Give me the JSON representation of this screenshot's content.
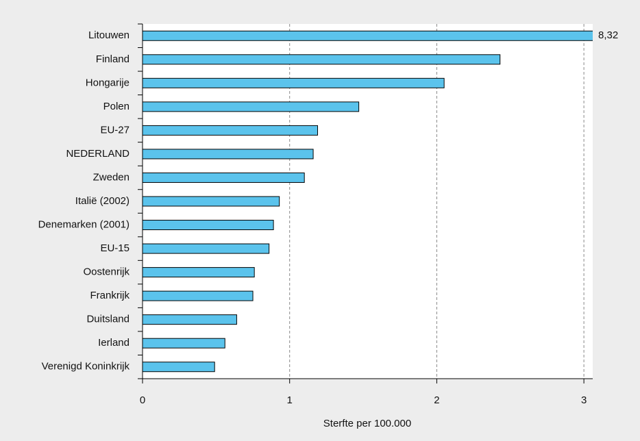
{
  "chart_data": {
    "type": "barh",
    "categories": [
      "Litouwen",
      "Finland",
      "Hongarije",
      "Polen",
      "EU-27",
      "NEDERLAND",
      "Zweden",
      "Italië (2002)",
      "Denemarken (2001)",
      "EU-15",
      "Oostenrijk",
      "Frankrijk",
      "Duitsland",
      "Ierland",
      "Verenigd Koninkrijk"
    ],
    "values": [
      8.32,
      2.43,
      2.05,
      1.47,
      1.19,
      1.16,
      1.1,
      0.93,
      0.89,
      0.86,
      0.76,
      0.75,
      0.64,
      0.56,
      0.49
    ],
    "value_labels": [
      "8,32",
      null,
      null,
      null,
      null,
      null,
      null,
      null,
      null,
      null,
      null,
      null,
      null,
      null,
      null
    ],
    "color": "#5bc3ec",
    "xlabel": "Sterfte per 100.000",
    "xlim": [
      0,
      3.06
    ],
    "xticks": [
      0,
      1,
      2,
      3
    ],
    "grid": true
  }
}
